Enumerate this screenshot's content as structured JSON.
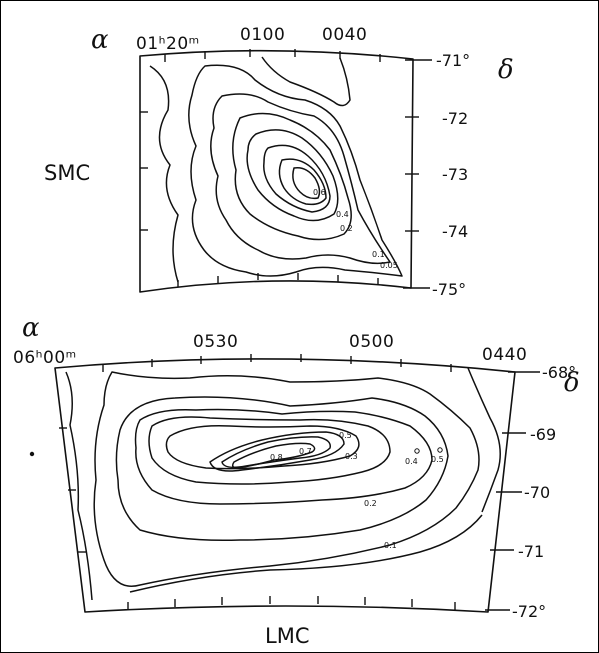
{
  "smc": {
    "name": "SMC",
    "alpha_symbol": "α",
    "delta_symbol": "δ",
    "ra_labels": [
      "01ʰ20ᵐ",
      "0100",
      "0040"
    ],
    "dec_labels": [
      "-71°",
      "-72",
      "-73",
      "-74",
      "-75°"
    ],
    "contour_labels": [
      "0.6",
      "0.4",
      "0.2",
      "0.1",
      "0.05"
    ]
  },
  "lmc": {
    "name": "LMC",
    "alpha_symbol": "α",
    "delta_symbol": "δ",
    "ra_labels": [
      "06ʰ00ᵐ",
      "0530",
      "0500",
      "0440"
    ],
    "dec_labels": [
      "-68°",
      "-69",
      "-70",
      "-71",
      "-72°"
    ],
    "contour_labels": [
      "0.8",
      "0.7",
      "0.5",
      "0.3",
      "0.2",
      "0.1",
      "0.4",
      "0.5"
    ]
  }
}
